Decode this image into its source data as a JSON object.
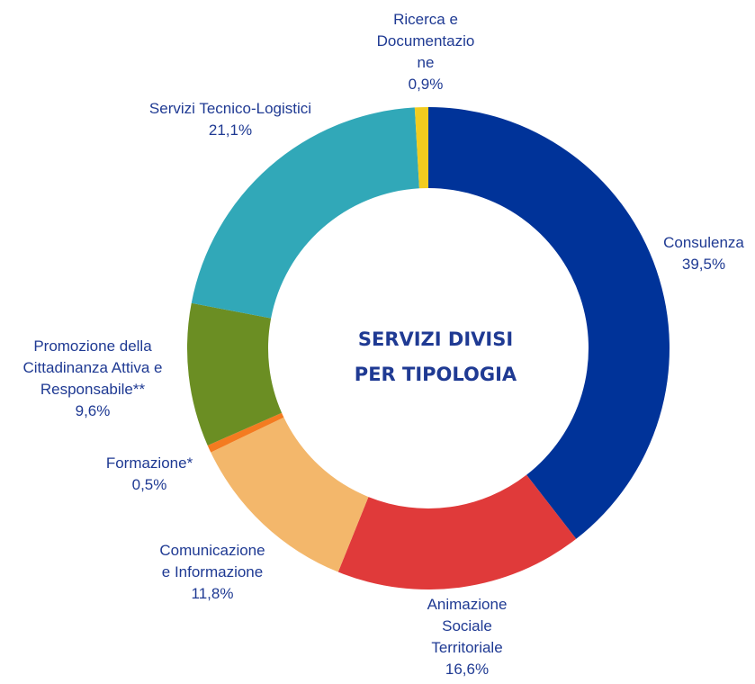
{
  "chart_data": {
    "type": "pie",
    "title": "SERVIZI DIVISI PER TIPOLOGIA",
    "title_lines": [
      "SERVIZI DIVISI",
      "PER TIPOLOGIA"
    ],
    "slices": [
      {
        "label_lines": [
          "Consulenza"
        ],
        "value_text": "39,5%",
        "value": 39.5,
        "color": "#003399"
      },
      {
        "label_lines": [
          "Animazione",
          "Sociale",
          "Territoriale"
        ],
        "value_text": "16,6%",
        "value": 16.6,
        "color": "#e03a3a"
      },
      {
        "label_lines": [
          "Comunicazione",
          "e Informazione"
        ],
        "value_text": "11,8%",
        "value": 11.8,
        "color": "#f3b76b"
      },
      {
        "label_lines": [
          "Formazione*"
        ],
        "value_text": "0,5%",
        "value": 0.5,
        "color": "#f47b20"
      },
      {
        "label_lines": [
          "Promozione della",
          "Cittadinanza Attiva e",
          "Responsabile**"
        ],
        "value_text": "9,6%",
        "value": 9.6,
        "color": "#6b8e23"
      },
      {
        "label_lines": [
          "Servizi Tecnico-Logistici"
        ],
        "value_text": "21,1%",
        "value": 21.1,
        "color": "#31a8b8"
      },
      {
        "label_lines": [
          "Ricerca e",
          "Documentazio",
          "ne"
        ],
        "value_text": "0,9%",
        "value": 0.9,
        "color": "#f2cc1f"
      }
    ]
  }
}
